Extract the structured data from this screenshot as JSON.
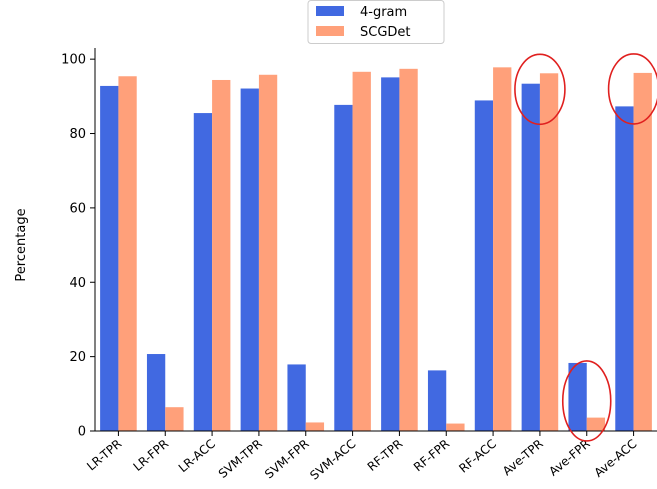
{
  "chart_data": {
    "type": "bar",
    "categories": [
      "LR-TPR",
      "LR-FPR",
      "LR-ACC",
      "SVM-TPR",
      "SVM-FPR",
      "SVM-ACC",
      "RF-TPR",
      "RF-FPR",
      "RF-ACC",
      "Ave-TPR",
      "Ave-FPR",
      "Ave-ACC"
    ],
    "series": [
      {
        "name": "4-gram",
        "color": "#4169e1",
        "values": [
          92.8,
          20.7,
          85.5,
          92.1,
          17.9,
          87.7,
          95.1,
          16.3,
          88.9,
          93.4,
          18.3,
          87.3
        ]
      },
      {
        "name": "SCGDet",
        "color": "#ffa07a",
        "values": [
          95.4,
          6.4,
          94.4,
          95.8,
          2.3,
          96.6,
          97.4,
          2.0,
          97.8,
          96.2,
          3.6,
          96.3
        ]
      }
    ],
    "title": "",
    "xlabel": "",
    "ylabel": "Percentage",
    "ylim": [
      0,
      103
    ],
    "yticks": [
      "0",
      "20",
      "40",
      "60",
      "80",
      "100"
    ],
    "grid": false,
    "legend_position": "top-center",
    "annotations": [
      {
        "type": "ellipse-highlight",
        "category": "Ave-TPR",
        "color": "#e0201f"
      },
      {
        "type": "ellipse-highlight",
        "category": "Ave-FPR",
        "color": "#e0201f"
      },
      {
        "type": "ellipse-highlight",
        "category": "Ave-ACC",
        "color": "#e0201f"
      }
    ]
  }
}
